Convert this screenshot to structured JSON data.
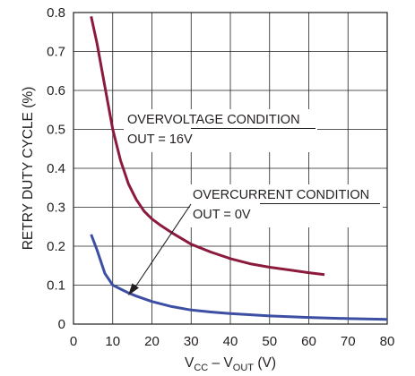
{
  "chart_data": {
    "type": "line",
    "title": "",
    "xlabel": {
      "main": "V",
      "sub1": "CC",
      "mid": " – V",
      "sub2": "OUT",
      "tail": " (V)"
    },
    "ylabel": "RETRY DUTY CYCLE (%)",
    "xlim": [
      0,
      80
    ],
    "ylim": [
      0,
      0.8
    ],
    "xticks": [
      "0",
      "10",
      "20",
      "30",
      "40",
      "50",
      "60",
      "70",
      "80"
    ],
    "yticks": [
      "0",
      "0.1",
      "0.2",
      "0.3",
      "0.4",
      "0.5",
      "0.6",
      "0.7",
      "0.8"
    ],
    "grid": true,
    "series": [
      {
        "color": "#8b1a3c",
        "x": [
          4.5,
          6,
          8,
          10,
          12,
          14,
          16,
          18,
          20,
          22,
          25,
          30,
          35,
          40,
          45,
          50,
          55,
          60,
          64
        ],
        "y": [
          0.79,
          0.72,
          0.61,
          0.5,
          0.42,
          0.36,
          0.32,
          0.29,
          0.27,
          0.255,
          0.235,
          0.205,
          0.185,
          0.168,
          0.155,
          0.146,
          0.139,
          0.132,
          0.127
        ]
      },
      {
        "color": "#3d4fa3",
        "x": [
          4.5,
          6,
          8,
          10,
          12,
          14,
          16,
          20,
          25,
          30,
          35,
          40,
          50,
          60,
          70,
          80
        ],
        "y": [
          0.23,
          0.19,
          0.13,
          0.1,
          0.09,
          0.08,
          0.072,
          0.058,
          0.045,
          0.036,
          0.031,
          0.027,
          0.021,
          0.017,
          0.014,
          0.012
        ]
      }
    ],
    "annotations": [
      {
        "line1": "OVERVOLTAGE CONDITION",
        "line2": "OUT = 16V"
      },
      {
        "line1": "OVERCURRENT CONDITION",
        "line2": "OUT = 0V"
      }
    ]
  }
}
